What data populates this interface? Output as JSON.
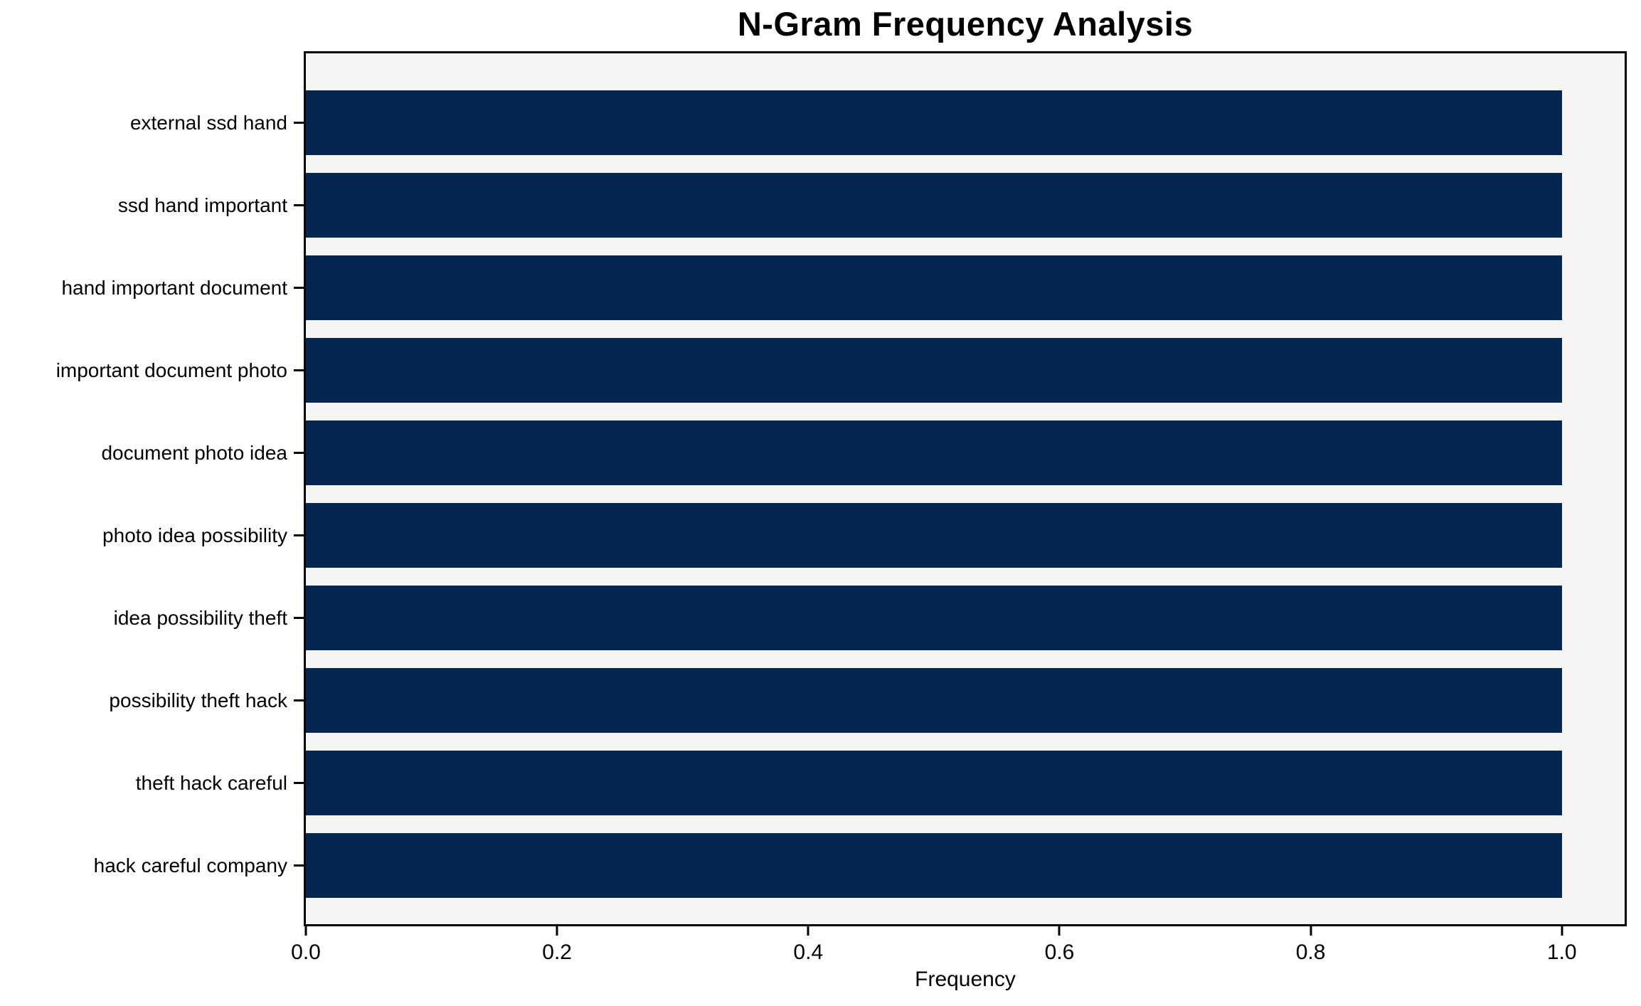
{
  "chart_data": {
    "type": "bar",
    "orientation": "horizontal",
    "title": "N-Gram Frequency Analysis",
    "xlabel": "Frequency",
    "ylabel": "",
    "categories": [
      "external ssd hand",
      "ssd hand important",
      "hand important document",
      "important document photo",
      "document photo idea",
      "photo idea possibility",
      "idea possibility theft",
      "possibility theft hack",
      "theft hack careful",
      "hack careful company"
    ],
    "values": [
      1.0,
      1.0,
      1.0,
      1.0,
      1.0,
      1.0,
      1.0,
      1.0,
      1.0,
      1.0
    ],
    "xlim": [
      0,
      1.05
    ],
    "xticks": [
      0.0,
      0.2,
      0.4,
      0.6,
      0.8,
      1.0
    ],
    "xtick_labels": [
      "0.0",
      "0.2",
      "0.4",
      "0.6",
      "0.8",
      "1.0"
    ],
    "grid": false,
    "legend_position": "none",
    "colors": {
      "bar": "#05274f",
      "plot_background": "#f5f5f6",
      "figure_background": "#ffffff",
      "spine": "#000000",
      "text": "#000000"
    }
  }
}
